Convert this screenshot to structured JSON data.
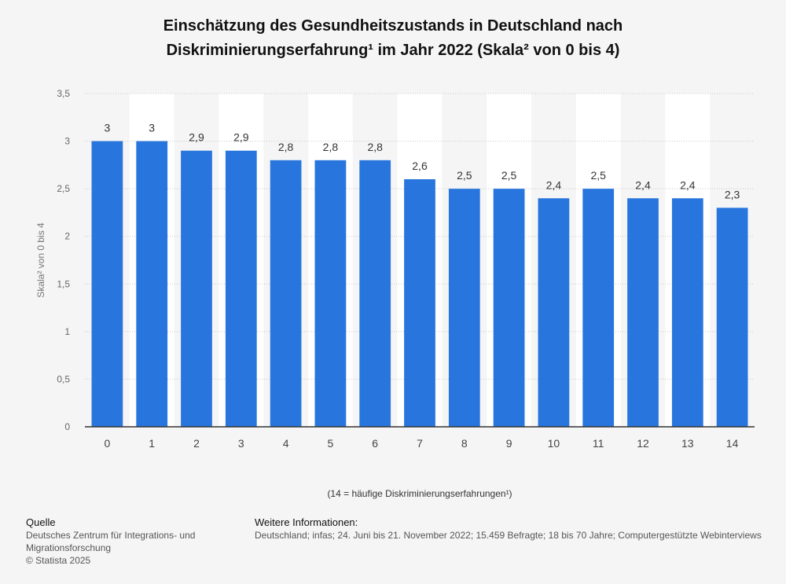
{
  "title_line1": "Einschätzung des Gesundheitszustands in Deutschland nach",
  "title_line2": "Diskriminierungserfahrung¹ im Jahr 2022 (Skala² von 0 bis 4)",
  "chart_data": {
    "type": "bar",
    "categories": [
      "0",
      "1",
      "2",
      "3",
      "4",
      "5",
      "6",
      "7",
      "8",
      "9",
      "10",
      "11",
      "12",
      "13",
      "14"
    ],
    "values": [
      3,
      3,
      2.9,
      2.9,
      2.8,
      2.8,
      2.8,
      2.6,
      2.5,
      2.5,
      2.4,
      2.5,
      2.4,
      2.4,
      2.3
    ],
    "value_labels": [
      "3",
      "3",
      "2,9",
      "2,9",
      "2,8",
      "2,8",
      "2,8",
      "2,6",
      "2,5",
      "2,5",
      "2,4",
      "2,5",
      "2,4",
      "2,4",
      "2,3"
    ],
    "ylabel": "Skala² von 0 bis 4",
    "xlabel": "(14 = häufige Diskriminierungserfahrungen¹)",
    "ylim": [
      0,
      3.5
    ],
    "yticks": [
      0,
      0.5,
      1,
      1.5,
      2,
      2.5,
      3,
      3.5
    ],
    "ytick_labels": [
      "0",
      "0,5",
      "1",
      "1,5",
      "2",
      "2,5",
      "3",
      "3,5"
    ],
    "bar_color": "#2876dd",
    "grid": true
  },
  "footer": {
    "source_heading": "Quelle",
    "source_line1": "Deutsches Zentrum für Integrations- und",
    "source_line2": "Migrationsforschung",
    "copyright": "© Statista 2025",
    "info_heading": "Weitere Informationen:",
    "info_text": "Deutschland; infas; 24. Juni bis 21. November 2022; 15.459 Befragte; 18 bis 70 Jahre; Computergestützte Webinterviews"
  }
}
